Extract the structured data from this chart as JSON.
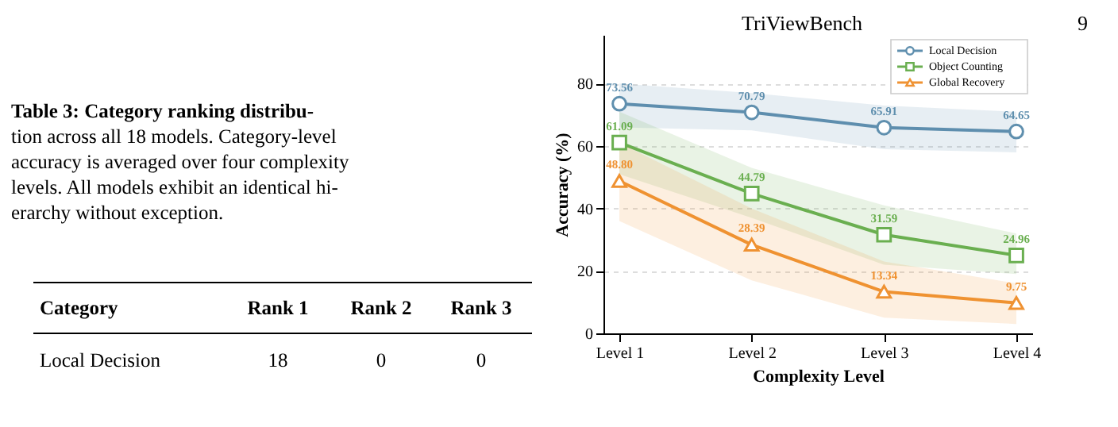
{
  "chart_data": {
    "type": "line",
    "xlabel": "Complexity Level",
    "ylabel": "Accuracy (%)",
    "categories": [
      "Level 1",
      "Level 2",
      "Level 3",
      "Level 4"
    ],
    "series": [
      {
        "name": "Local Decision",
        "color": "#5f8fae",
        "marker": "circle",
        "values": [
          73.56,
          70.79,
          65.91,
          64.65
        ],
        "value_labels": [
          "73.56",
          "70.79",
          "65.91",
          "64.65"
        ],
        "lower": [
          66,
          65,
          59,
          58
        ],
        "upper": [
          80,
          77,
          73,
          71
        ]
      },
      {
        "name": "Object Counting",
        "color": "#6aaf50",
        "marker": "square",
        "values": [
          61.09,
          44.79,
          31.59,
          24.96
        ],
        "value_labels": [
          "61.09",
          "44.79",
          "31.59",
          "24.96"
        ],
        "lower": [
          51,
          37,
          22,
          19
        ],
        "upper": [
          71,
          53,
          41,
          32
        ]
      },
      {
        "name": "Global Recovery",
        "color": "#ef9232",
        "marker": "triangle",
        "values": [
          48.8,
          28.39,
          13.34,
          9.75
        ],
        "value_labels": [
          "48.80",
          "28.39",
          "13.34",
          "9.75"
        ],
        "lower": [
          36,
          17,
          5,
          3
        ],
        "upper": [
          61,
          40,
          23,
          16
        ]
      }
    ],
    "ylim": [
      0,
      95.6
    ],
    "yticks": [
      0,
      20,
      40,
      60,
      80
    ],
    "grid": "y",
    "legend": "top right",
    "line_style": "solid",
    "annotations": [
      "TriViewBench",
      "9",
      "Table 3: Category ranking distribu-",
      "tion across all 18 models. Category-level",
      "accuracy is averaged over four complexity",
      "levels. All models exhibit an identical hi-",
      "erarchy without exception.",
      "Category",
      "Rank 1",
      "Rank 2",
      "Rank 3",
      "Local Decision",
      "18",
      "0",
      "0"
    ]
  }
}
